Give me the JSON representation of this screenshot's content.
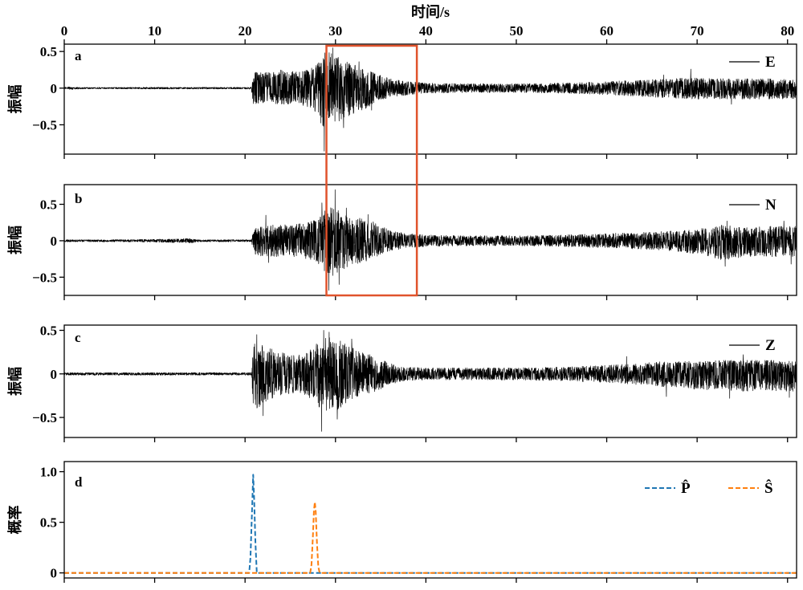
{
  "x_axis": {
    "label": "时间/s",
    "label_position": "top",
    "xlim": [
      0,
      81
    ],
    "ticks": [
      0,
      10,
      20,
      30,
      40,
      50,
      60,
      70,
      80
    ],
    "tick_labels": [
      "0",
      "10",
      "20",
      "30",
      "40",
      "50",
      "60",
      "70",
      "80"
    ]
  },
  "highlight_box": {
    "x": [
      29,
      39
    ],
    "panels": [
      "a",
      "b"
    ],
    "color": "#e0532c"
  },
  "chart_data": [
    {
      "panel": "a",
      "type": "line",
      "ylabel": "振幅",
      "ylim": [
        -0.9,
        0.6
      ],
      "yticks": [
        0.5,
        0,
        -0.5
      ],
      "ytick_labels": [
        "0.5",
        "0",
        "−0.5"
      ],
      "grid": false,
      "legend": "top-right",
      "series": [
        {
          "name": "E",
          "color": "#000000",
          "style": "solid",
          "envelope": {
            "x": [
              0,
              0.3,
              0.7,
              1.2,
              5,
              10,
              15,
              20,
              20.7,
              20.9,
              22,
              24,
              26,
              27.5,
              28.2,
              28.8,
              29.5,
              30.5,
              31.5,
              33,
              34.5,
              36,
              38,
              40,
              45,
              50,
              55,
              60,
              63,
              66,
              69,
              72,
              75,
              78,
              81
            ],
            "upper": [
              0.01,
              0.035,
              0.01,
              0.012,
              0.01,
              0.012,
              0.012,
              0.012,
              0.015,
              0.22,
              0.22,
              0.25,
              0.22,
              0.28,
              0.4,
              0.5,
              0.48,
              0.42,
              0.36,
              0.28,
              0.2,
              0.13,
              0.09,
              0.07,
              0.06,
              0.06,
              0.07,
              0.09,
              0.11,
              0.12,
              0.15,
              0.13,
              0.13,
              0.13,
              0.12
            ],
            "lower": [
              -0.01,
              -0.005,
              -0.025,
              -0.012,
              -0.01,
              -0.012,
              -0.012,
              -0.012,
              -0.015,
              -0.22,
              -0.2,
              -0.22,
              -0.22,
              -0.3,
              -0.45,
              -0.55,
              -0.5,
              -0.45,
              -0.38,
              -0.3,
              -0.2,
              -0.13,
              -0.09,
              -0.07,
              -0.06,
              -0.06,
              -0.07,
              -0.09,
              -0.11,
              -0.13,
              -0.15,
              -0.15,
              -0.15,
              -0.15,
              -0.15
            ]
          },
          "peaks": [
            [
              28.75,
              -0.86
            ],
            [
              28.95,
              0.58
            ],
            [
              29.7,
              0.55
            ],
            [
              30.9,
              -0.54
            ],
            [
              32.6,
              0.36
            ],
            [
              34.0,
              -0.3
            ],
            [
              66.3,
              0.18
            ],
            [
              69.3,
              0.26
            ],
            [
              73.8,
              -0.22
            ]
          ]
        }
      ]
    },
    {
      "panel": "b",
      "type": "line",
      "ylabel": "振幅",
      "ylim": [
        -0.75,
        0.77
      ],
      "yticks": [
        0.5,
        0,
        -0.5
      ],
      "ytick_labels": [
        "0.5",
        "0",
        "−0.5"
      ],
      "grid": false,
      "legend": "top-right",
      "series": [
        {
          "name": "N",
          "color": "#000000",
          "style": "solid",
          "envelope": {
            "x": [
              0,
              5,
              10,
              14,
              15,
              20,
              20.7,
              21,
              22,
              23,
              25,
              27,
              28,
              28.8,
              29.5,
              30.5,
              31.5,
              33,
              34.5,
              36,
              38,
              40,
              45,
              50,
              55,
              60,
              65,
              68,
              71,
              73,
              75,
              78,
              81
            ],
            "upper": [
              0.015,
              0.015,
              0.02,
              0.03,
              0.015,
              0.015,
              0.015,
              0.18,
              0.2,
              0.22,
              0.22,
              0.25,
              0.3,
              0.45,
              0.48,
              0.4,
              0.35,
              0.3,
              0.25,
              0.14,
              0.1,
              0.08,
              0.07,
              0.07,
              0.08,
              0.1,
              0.12,
              0.14,
              0.18,
              0.22,
              0.18,
              0.2,
              0.22
            ],
            "lower": [
              -0.015,
              -0.015,
              -0.02,
              -0.03,
              -0.015,
              -0.015,
              -0.015,
              -0.18,
              -0.22,
              -0.22,
              -0.22,
              -0.25,
              -0.3,
              -0.45,
              -0.5,
              -0.42,
              -0.35,
              -0.3,
              -0.22,
              -0.14,
              -0.1,
              -0.08,
              -0.07,
              -0.07,
              -0.08,
              -0.1,
              -0.12,
              -0.15,
              -0.2,
              -0.28,
              -0.22,
              -0.22,
              -0.25
            ]
          },
          "peaks": [
            [
              22.3,
              0.35
            ],
            [
              22.6,
              -0.3
            ],
            [
              28.5,
              0.52
            ],
            [
              29.25,
              -0.68
            ],
            [
              29.95,
              0.7
            ],
            [
              30.4,
              -0.6
            ],
            [
              31.2,
              0.45
            ],
            [
              33.6,
              0.36
            ],
            [
              73.1,
              -0.35
            ],
            [
              73.3,
              0.27
            ],
            [
              79.6,
              0.27
            ],
            [
              80.4,
              -0.32
            ]
          ]
        }
      ]
    },
    {
      "panel": "c",
      "type": "line",
      "ylabel": "振幅",
      "ylim": [
        -0.73,
        0.56
      ],
      "yticks": [
        0.5,
        0,
        -0.5
      ],
      "ytick_labels": [
        "0.5",
        "0",
        "−0.5"
      ],
      "grid": false,
      "legend": "top-right",
      "series": [
        {
          "name": "Z",
          "color": "#000000",
          "style": "solid",
          "envelope": {
            "x": [
              0,
              5,
              10,
              15,
              20,
              20.7,
              20.9,
              21.5,
              22.5,
              24,
              26,
              27.5,
              28.5,
              29.5,
              30.5,
              31.5,
              33,
              34.5,
              36,
              38,
              40,
              45,
              50,
              55,
              60,
              63,
              66,
              70,
              74,
              78,
              81
            ],
            "upper": [
              0.015,
              0.015,
              0.015,
              0.015,
              0.015,
              0.015,
              0.35,
              0.38,
              0.3,
              0.25,
              0.22,
              0.3,
              0.42,
              0.45,
              0.38,
              0.32,
              0.25,
              0.2,
              0.12,
              0.08,
              0.07,
              0.07,
              0.07,
              0.08,
              0.1,
              0.12,
              0.14,
              0.15,
              0.16,
              0.16,
              0.15
            ],
            "lower": [
              -0.015,
              -0.015,
              -0.015,
              -0.015,
              -0.015,
              -0.015,
              -0.4,
              -0.4,
              -0.3,
              -0.25,
              -0.22,
              -0.3,
              -0.42,
              -0.45,
              -0.4,
              -0.32,
              -0.25,
              -0.2,
              -0.12,
              -0.08,
              -0.07,
              -0.07,
              -0.07,
              -0.08,
              -0.1,
              -0.12,
              -0.15,
              -0.18,
              -0.2,
              -0.2,
              -0.2
            ]
          },
          "peaks": [
            [
              21.3,
              0.45
            ],
            [
              22.0,
              -0.48
            ],
            [
              28.45,
              -0.66
            ],
            [
              28.7,
              0.5
            ],
            [
              29.3,
              0.48
            ],
            [
              30.2,
              -0.52
            ],
            [
              31.8,
              0.4
            ],
            [
              62.2,
              0.2
            ],
            [
              66.6,
              -0.26
            ],
            [
              73.6,
              -0.28
            ],
            [
              75.1,
              0.22
            ],
            [
              80.2,
              -0.27
            ]
          ]
        }
      ]
    },
    {
      "panel": "d",
      "type": "line",
      "ylabel": "概率",
      "ylim": [
        -0.05,
        1.1
      ],
      "yticks": [
        1.0,
        0.5,
        0
      ],
      "ytick_labels": [
        "1.0",
        "0.5",
        "0"
      ],
      "grid": false,
      "legend": "top-right",
      "series": [
        {
          "name": "P̂",
          "color": "#1f77b4",
          "style": "dashed",
          "x": [
            0,
            20.45,
            20.6,
            20.75,
            20.9,
            21.0,
            21.15,
            21.3,
            81
          ],
          "y": [
            0,
            0,
            0.15,
            0.55,
            0.97,
            0.75,
            0.3,
            0,
            0
          ]
        },
        {
          "name": "Ŝ",
          "color": "#ff7f0e",
          "style": "dashed",
          "x": [
            0,
            27.2,
            27.35,
            27.5,
            27.62,
            27.72,
            27.82,
            27.95,
            28.1,
            28.25,
            81
          ],
          "y": [
            0,
            0,
            0.08,
            0.35,
            0.62,
            0.7,
            0.6,
            0.3,
            0.06,
            0,
            0
          ]
        }
      ]
    }
  ]
}
